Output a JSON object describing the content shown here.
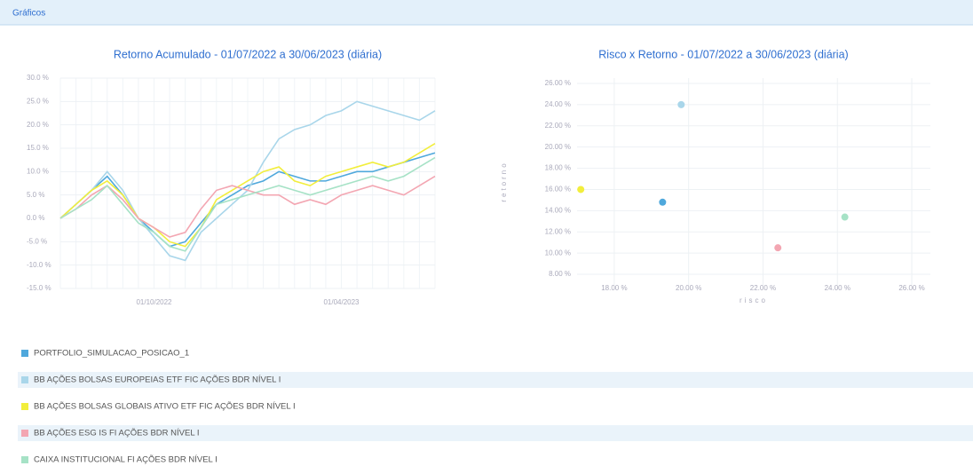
{
  "header": {
    "title": "Gráficos"
  },
  "chart_data": [
    {
      "type": "line",
      "title": "Retorno Acumulado - 01/07/2022 a 30/06/2023 (diária)",
      "categories": [
        null,
        null,
        null,
        null,
        null,
        null,
        "01/10/2022",
        null,
        null,
        null,
        null,
        null,
        null,
        null,
        null,
        null,
        null,
        null,
        "01/04/2023",
        null,
        null,
        null,
        null,
        null,
        null
      ],
      "ylim": [
        -15,
        30
      ],
      "yticks": [
        {
          "value": 30,
          "label": "30.0 %"
        },
        {
          "value": 25,
          "label": "25.0 %"
        },
        {
          "value": 20,
          "label": "20.0 %"
        },
        {
          "value": 15,
          "label": "15.0 %"
        },
        {
          "value": 10,
          "label": "10.0 %"
        },
        {
          "value": 5,
          "label": "5.0 %"
        },
        {
          "value": 0,
          "label": "0.0 %"
        },
        {
          "value": -5,
          "label": "-5.0 %"
        },
        {
          "value": -10,
          "label": "-10.0 %"
        },
        {
          "value": -15,
          "label": "-15.0 %"
        }
      ],
      "grid": true,
      "series": [
        {
          "name": "PORTFOLIO_SIMULACAO_POSICAO_1",
          "color": "#4fa8dc",
          "values": [
            0,
            3,
            6,
            9,
            5,
            0,
            -3,
            -6,
            -5,
            -1,
            3,
            5,
            7,
            8,
            10,
            9,
            8,
            8,
            9,
            10,
            10,
            11,
            12,
            13,
            14
          ]
        },
        {
          "name": "BB AÇÕES BOLSAS EUROPEIAS ETF FIC AÇÕES BDR NÍVEL I",
          "color": "#a9d6ea",
          "values": [
            0,
            3,
            6,
            10,
            6,
            0,
            -4,
            -8,
            -9,
            -3,
            0,
            3,
            6,
            12,
            17,
            19,
            20,
            22,
            23,
            25,
            24,
            23,
            22,
            21,
            23
          ]
        },
        {
          "name": "BB AÇÕES BOLSAS GLOBAIS ATIVO ETF FIC AÇÕES BDR NÍVEL I",
          "color": "#f2ee3c",
          "values": [
            0,
            3,
            6,
            8,
            5,
            0,
            -2,
            -5,
            -6,
            -2,
            4,
            6,
            8,
            10,
            11,
            8,
            7,
            9,
            10,
            11,
            12,
            11,
            12,
            14,
            16
          ]
        },
        {
          "name": "BB AÇÕES ESG IS FI AÇÕES BDR NÍVEL I",
          "color": "#f3a6b2",
          "values": [
            0,
            2,
            5,
            7,
            4,
            0,
            -2,
            -4,
            -3,
            2,
            6,
            7,
            6,
            5,
            5,
            3,
            4,
            3,
            5,
            6,
            7,
            6,
            5,
            7,
            9
          ]
        },
        {
          "name": "CAIXA INSTITUCIONAL FI AÇÕES BDR NÍVEL I",
          "color": "#a6e2c6",
          "values": [
            0,
            2,
            4,
            7,
            3,
            -1,
            -3,
            -6,
            -7,
            -2,
            3,
            4,
            5,
            6,
            7,
            6,
            5,
            6,
            7,
            8,
            9,
            8,
            9,
            11,
            13
          ]
        }
      ]
    },
    {
      "type": "scatter",
      "title": "Risco x Retorno - 01/07/2022 a 30/06/2023 (diária)",
      "x_label": "risco",
      "y_label": "retorno",
      "xlim": [
        17,
        26.5
      ],
      "ylim": [
        7,
        26.5
      ],
      "xticks": [
        {
          "value": 18,
          "label": "18.00 %"
        },
        {
          "value": 20,
          "label": "20.00 %"
        },
        {
          "value": 22,
          "label": "22.00 %"
        },
        {
          "value": 24,
          "label": "24.00 %"
        },
        {
          "value": 26,
          "label": "26.00 %"
        }
      ],
      "yticks": [
        {
          "value": 26,
          "label": "26.00 %"
        },
        {
          "value": 24,
          "label": "24.00 %"
        },
        {
          "value": 22,
          "label": "22.00 %"
        },
        {
          "value": 20,
          "label": "20.00 %"
        },
        {
          "value": 18,
          "label": "18.00 %"
        },
        {
          "value": 16,
          "label": "16.00 %"
        },
        {
          "value": 14,
          "label": "14.00 %"
        },
        {
          "value": 12,
          "label": "12.00 %"
        },
        {
          "value": 10,
          "label": "10.00 %"
        },
        {
          "value": 8,
          "label": "8.00 %"
        }
      ],
      "grid": true,
      "points": [
        {
          "x": 19.3,
          "y": 14.8,
          "color": "#4fa8dc"
        },
        {
          "x": 19.8,
          "y": 24.0,
          "color": "#a9d6ea"
        },
        {
          "x": 17.1,
          "y": 16.0,
          "color": "#f2ee3c"
        },
        {
          "x": 22.4,
          "y": 10.5,
          "color": "#f3a6b2"
        },
        {
          "x": 24.2,
          "y": 13.4,
          "color": "#a6e2c6"
        }
      ]
    }
  ]
}
